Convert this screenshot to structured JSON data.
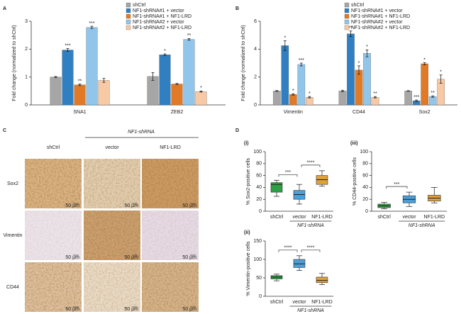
{
  "panel_labels": [
    "A",
    "B",
    "C",
    "D"
  ],
  "chart_data": [
    {
      "type": "bar",
      "ylabel": "Fold change (normalized to shCtrl)",
      "categories": [
        "SNA1",
        "ZEB2"
      ],
      "ylim": [
        0,
        3
      ],
      "yticks": [
        0,
        1,
        2,
        3
      ],
      "series": [
        {
          "name": "shCtrl",
          "color": "#a6a6a6",
          "values": [
            1.0,
            1.02
          ],
          "errors": [
            0.02,
            0.14
          ],
          "annotations": [
            null,
            null
          ]
        },
        {
          "name": "NF1-shRNA#1 + vector",
          "color": "#2f7fc1",
          "values": [
            1.97,
            1.8
          ],
          "errors": [
            0.05,
            0.03
          ],
          "annotations": [
            "***",
            "*"
          ]
        },
        {
          "name": "NF1-shRNA#1 + NF1-LRD",
          "color": "#e07a26",
          "values": [
            0.72,
            0.75
          ],
          "errors": [
            0.03,
            0.02
          ],
          "annotations": [
            "**",
            null
          ]
        },
        {
          "name": "NF1-shRNA#2 + vector",
          "color": "#91c6ea",
          "values": [
            2.78,
            2.35
          ],
          "errors": [
            0.04,
            0.03
          ],
          "annotations": [
            "***",
            "**"
          ]
        },
        {
          "name": "NF1-shRNA#2 + NF1-LRD",
          "color": "#f7c9a5",
          "values": [
            0.88,
            0.48
          ],
          "errors": [
            0.07,
            0.02
          ],
          "annotations": [
            null,
            "*"
          ]
        }
      ]
    },
    {
      "type": "bar",
      "ylabel": "Fold change (normalized to shCtrl)",
      "categories": [
        "Vimentin",
        "CD44",
        "Sox2"
      ],
      "ylim": [
        0,
        6
      ],
      "yticks": [
        0,
        2,
        4,
        6
      ],
      "series": [
        {
          "name": "shCtrl",
          "color": "#a6a6a6",
          "values": [
            1.0,
            1.0,
            1.0
          ],
          "errors": [
            0.03,
            0.05,
            0.02
          ],
          "annotations": [
            null,
            null,
            null
          ]
        },
        {
          "name": "NF1-shRNA#1 + vector",
          "color": "#2f7fc1",
          "values": [
            4.25,
            5.1,
            0.3
          ],
          "errors": [
            0.35,
            0.2,
            0.05
          ],
          "annotations": [
            "*",
            "**",
            "***"
          ]
        },
        {
          "name": "NF1-shRNA#1 + NF1-LRD",
          "color": "#e07a26",
          "values": [
            0.75,
            2.5,
            2.95
          ],
          "errors": [
            0.05,
            0.3,
            0.08
          ],
          "annotations": [
            "*",
            "*",
            "*"
          ]
        },
        {
          "name": "NF1-shRNA#2 + vector",
          "color": "#91c6ea",
          "values": [
            2.9,
            3.7,
            0.6
          ],
          "errors": [
            0.1,
            0.25,
            0.05
          ],
          "annotations": [
            "***",
            "*",
            "**"
          ]
        },
        {
          "name": "NF1-shRNA#2 + NF1-LRD",
          "color": "#f7c9a5",
          "values": [
            0.55,
            0.55,
            1.85
          ],
          "errors": [
            0.05,
            0.05,
            0.3
          ],
          "annotations": [
            "*",
            "**",
            "*"
          ]
        }
      ]
    },
    {
      "type": "box",
      "title": "(i)",
      "ylabel": "% Sox2-positive cells",
      "categories": [
        "shCtrl",
        "vector",
        "NF1-LRD"
      ],
      "group_label": "NF1-shRNA",
      "colors": [
        "#2ea043",
        "#4a9fd8",
        "#e0a040"
      ],
      "ylim": [
        0,
        100
      ],
      "yticks": [
        0,
        20,
        40,
        60,
        80,
        100
      ],
      "boxes": [
        {
          "whislo": 25,
          "q1": 32,
          "med": 45,
          "q3": 48,
          "whishi": 52
        },
        {
          "whislo": 12,
          "q1": 20,
          "med": 28,
          "q3": 35,
          "whishi": 45
        },
        {
          "whislo": 42,
          "q1": 45,
          "med": 53,
          "q3": 60,
          "whishi": 68
        }
      ],
      "comparisons": [
        {
          "between": [
            "shCtrl",
            "vector"
          ],
          "label": "***"
        },
        {
          "between": [
            "vector",
            "NF1-LRD"
          ],
          "label": "****"
        }
      ]
    },
    {
      "type": "box",
      "title": "(iii)",
      "ylabel": "% CD44-positive cells",
      "categories": [
        "shCtrl",
        "vector",
        "NF1-LRD"
      ],
      "group_label": "NF1-shRNA",
      "colors": [
        "#2ea043",
        "#4a9fd8",
        "#e0a040"
      ],
      "ylim": [
        0,
        100
      ],
      "yticks": [
        0,
        20,
        40,
        60,
        80,
        100
      ],
      "boxes": [
        {
          "whislo": 4,
          "q1": 6,
          "med": 9,
          "q3": 12,
          "whishi": 15
        },
        {
          "whislo": 8,
          "q1": 14,
          "med": 20,
          "q3": 26,
          "whishi": 32
        },
        {
          "whislo": 14,
          "q1": 17,
          "med": 22,
          "q3": 27,
          "whishi": 40
        }
      ],
      "comparisons": [
        {
          "between": [
            "shCtrl",
            "vector"
          ],
          "label": "***"
        }
      ]
    },
    {
      "type": "box",
      "title": "(ii)",
      "ylabel": "% Vimentin-positive cells",
      "categories": [
        "shCtrl",
        "vector",
        "NF1-LRD"
      ],
      "group_label": "NF1-shRNA",
      "colors": [
        "#2ea043",
        "#4a9fd8",
        "#e0a040"
      ],
      "ylim": [
        0,
        150
      ],
      "yticks": [
        0,
        50,
        100,
        150
      ],
      "boxes": [
        {
          "whislo": 42,
          "q1": 47,
          "med": 52,
          "q3": 56,
          "whishi": 60
        },
        {
          "whislo": 70,
          "q1": 78,
          "med": 88,
          "q3": 100,
          "whishi": 110
        },
        {
          "whislo": 32,
          "q1": 37,
          "med": 43,
          "q3": 52,
          "whishi": 62
        }
      ],
      "comparisons": [
        {
          "between": [
            "shCtrl",
            "vector"
          ],
          "label": "****"
        },
        {
          "between": [
            "vector",
            "NF1-LRD"
          ],
          "label": "****"
        }
      ]
    }
  ],
  "panel_c": {
    "group_header": "NF1-shRNA",
    "columns": [
      "shCtrl",
      "vector",
      "NF1-LRD"
    ],
    "rows": [
      "Sox2",
      "Vimentin",
      "CD44"
    ],
    "scale_bar": "50 µm"
  }
}
